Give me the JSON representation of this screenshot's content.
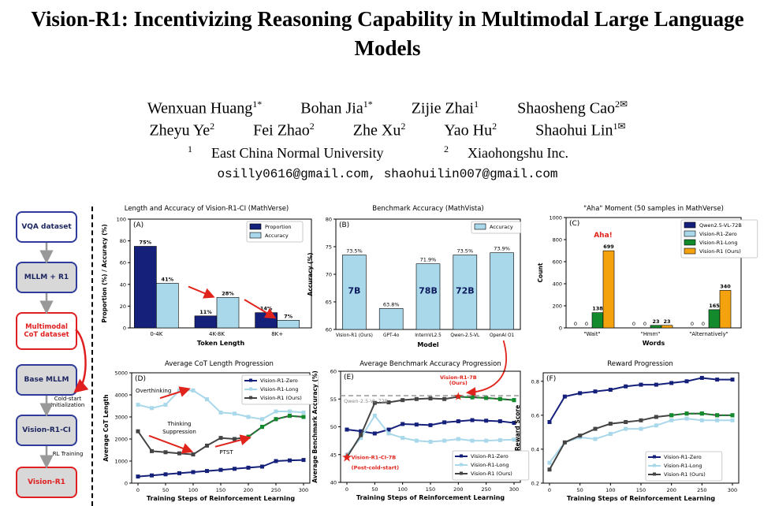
{
  "paper": {
    "title_line1": "Vision-R1: Incentivizing Reasoning Capability in Multimodal Large Language",
    "title_line2": "Models",
    "authors_row1": [
      {
        "name": "Wenxuan Huang",
        "mark": "1*"
      },
      {
        "name": "Bohan Jia",
        "mark": "1*"
      },
      {
        "name": "Zijie Zhai",
        "mark": "1"
      },
      {
        "name": "Shaosheng Cao",
        "mark": "2✉"
      }
    ],
    "authors_row2": [
      {
        "name": "Zheyu Ye",
        "mark": "2"
      },
      {
        "name": "Fei Zhao",
        "mark": "2"
      },
      {
        "name": "Zhe Xu",
        "mark": "2"
      },
      {
        "name": "Yao Hu",
        "mark": "2"
      },
      {
        "name": "Shaohui Lin",
        "mark": "1✉"
      }
    ],
    "affiliations": [
      {
        "mark": "1",
        "name": "East China Normal University"
      },
      {
        "mark": "2",
        "name": "Xiaohongshu Inc."
      }
    ],
    "emails": "osilly0616@gmail.com, shaohuilin007@gmail.com"
  },
  "flow": {
    "boxes": [
      "VQA dataset",
      "MLLM + R1",
      "Multimodal CoT dataset",
      "Base MLLM",
      "Vision-R1-CI",
      "Vision-R1"
    ],
    "labels": [
      "Cold-start Initialization",
      "RL Training"
    ]
  },
  "colors": {
    "navy": "#14207a",
    "light": "#a9d8ea",
    "green": "#138a2b",
    "orange": "#f5a20f",
    "red": "#e0241c",
    "darkgray": "#444444"
  },
  "chart_data": [
    {
      "id": "A",
      "type": "bar",
      "panel_label": "(A)",
      "title": "Length and Accuracy of Vision-R1-CI (MathVerse)",
      "xlabel": "Token Length",
      "ylabel": "Proportion (%) / Accuracy (%)",
      "categories": [
        "0-4K",
        "4K-8K",
        "8K+"
      ],
      "ylim": [
        0,
        100
      ],
      "yticks": [
        0,
        20,
        40,
        60,
        80,
        100
      ],
      "series": [
        {
          "name": "Proportion",
          "values": [
            75,
            11,
            14
          ],
          "labels": [
            "75%",
            "11%",
            "14%"
          ]
        },
        {
          "name": "Accuracy",
          "values": [
            41,
            28,
            7
          ],
          "labels": [
            "41%",
            "28%",
            "7%"
          ]
        }
      ]
    },
    {
      "id": "B",
      "type": "bar",
      "panel_label": "(B)",
      "title": "Benchmark Accuracy (MathVista)",
      "xlabel": "Model",
      "ylabel": "Accuracy (%)",
      "categories": [
        "Vision-R1 (Ours)",
        "GPT-4o",
        "InternVL2.5",
        "Qwen-2.5-VL",
        "OpenAI O1"
      ],
      "ylim": [
        60,
        80
      ],
      "yticks": [
        60,
        65,
        70,
        75,
        80
      ],
      "series": [
        {
          "name": "Accuracy",
          "values": [
            73.5,
            63.8,
            71.9,
            73.5,
            73.9
          ],
          "labels": [
            "73.5%",
            "63.8%",
            "71.9%",
            "73.5%",
            "73.9%"
          ]
        }
      ],
      "bar_text": [
        "7B",
        "",
        "78B",
        "72B",
        ""
      ]
    },
    {
      "id": "C",
      "type": "bar",
      "panel_label": "(C)",
      "title": "\"Aha\" Moment (50 samples in MathVerse)",
      "xlabel": "Words",
      "ylabel": "Count",
      "categories": [
        "\"Wait\"",
        "\"Hmm\"",
        "\"Alternatively\""
      ],
      "ylim": [
        0,
        1000
      ],
      "yticks": [
        0,
        200,
        400,
        600,
        800,
        1000
      ],
      "series": [
        {
          "name": "Qwen2.5-VL-72B",
          "values": [
            0,
            0,
            0
          ]
        },
        {
          "name": "Vision-R1-Zero",
          "values": [
            0,
            0,
            0
          ]
        },
        {
          "name": "Vision-R1-Long",
          "values": [
            138,
            23,
            165
          ]
        },
        {
          "name": "Vision-R1 (Ours)",
          "values": [
            699,
            23,
            340
          ]
        }
      ],
      "annotation": "Aha!"
    },
    {
      "id": "D",
      "type": "line",
      "panel_label": "(D)",
      "title": "Average CoT Length Progression",
      "xlabel": "Training Steps of Reinforcement Learning",
      "ylabel": "Average CoT Length",
      "x": [
        0,
        25,
        50,
        75,
        100,
        125,
        150,
        175,
        200,
        225,
        250,
        275,
        300
      ],
      "xlim": [
        0,
        300
      ],
      "xticks": [
        0,
        50,
        100,
        150,
        200,
        250,
        300
      ],
      "ylim": [
        0,
        5000
      ],
      "yticks": [
        0,
        1000,
        2000,
        3000,
        4000,
        5000
      ],
      "series": [
        {
          "name": "Vision-R1-Zero",
          "values": [
            300,
            350,
            400,
            450,
            500,
            550,
            600,
            650,
            700,
            750,
            1000,
            1030,
            1050
          ]
        },
        {
          "name": "Vision-R1-Long",
          "values": [
            3550,
            3400,
            3550,
            4200,
            4200,
            3800,
            3200,
            3150,
            3000,
            2900,
            3250,
            3250,
            3200
          ]
        },
        {
          "name": "Vision-R1 (Ours)",
          "values": [
            2350,
            1450,
            1400,
            1350,
            1300,
            1700,
            2050,
            2000,
            2100,
            2550,
            2900,
            3050,
            3000
          ]
        }
      ],
      "annotations": [
        "Overthinking",
        "Thinking",
        "Suppression",
        "PTST"
      ]
    },
    {
      "id": "E",
      "type": "line",
      "panel_label": "(E)",
      "title": "Average Benchmark Accuracy Progression",
      "xlabel": "Training Steps of Reinforcement Learning",
      "ylabel": "Average Benchmark Accuracy (%)",
      "x": [
        0,
        25,
        50,
        75,
        100,
        125,
        150,
        175,
        200,
        225,
        250,
        275,
        300
      ],
      "xlim": [
        0,
        300
      ],
      "xticks": [
        0,
        50,
        100,
        150,
        200,
        250,
        300
      ],
      "ylim": [
        40,
        60
      ],
      "yticks": [
        40,
        45,
        50,
        55,
        60
      ],
      "series": [
        {
          "name": "Vision-R1-Zero",
          "values": [
            49.5,
            49.2,
            48.8,
            49.5,
            50.5,
            50.4,
            50.3,
            50.8,
            51.0,
            51.2,
            51.1,
            51.0,
            50.7
          ]
        },
        {
          "name": "Vision-R1-Long",
          "values": [
            45.0,
            48.0,
            52.0,
            48.8,
            48.0,
            47.5,
            47.3,
            47.5,
            47.8,
            47.5,
            47.5,
            47.6,
            47.7
          ]
        },
        {
          "name": "Vision-R1 (Ours)",
          "values": [
            44.5,
            48.5,
            54.3,
            54.4,
            54.8,
            55.0,
            55.1,
            55.0,
            55.4,
            55.3,
            55.2,
            55.0,
            54.8
          ]
        }
      ],
      "reference": {
        "name": "Qwen-2.5-VL-72B",
        "value": 55.6
      },
      "markers": [
        "Vision-R1-7B (Ours)",
        "Vision-R1-CI-7B (Post-cold-start)"
      ]
    },
    {
      "id": "F",
      "type": "line",
      "panel_label": "(F)",
      "title": "Reward Progression",
      "xlabel": "Training Steps of Reinforcement Learning",
      "ylabel": "Reward Score",
      "x": [
        0,
        25,
        50,
        75,
        100,
        125,
        150,
        175,
        200,
        225,
        250,
        275,
        300
      ],
      "xlim": [
        0,
        300
      ],
      "xticks": [
        0,
        50,
        100,
        150,
        200,
        250,
        300
      ],
      "ylim": [
        0.2,
        0.85
      ],
      "yticks": [
        0.2,
        0.4,
        0.6,
        0.8
      ],
      "series": [
        {
          "name": "Vision-R1-Zero",
          "values": [
            0.56,
            0.71,
            0.73,
            0.74,
            0.75,
            0.77,
            0.78,
            0.78,
            0.79,
            0.8,
            0.82,
            0.81,
            0.81
          ]
        },
        {
          "name": "Vision-R1-Long",
          "values": [
            0.32,
            0.44,
            0.47,
            0.46,
            0.49,
            0.52,
            0.52,
            0.54,
            0.57,
            0.58,
            0.57,
            0.57,
            0.57
          ]
        },
        {
          "name": "Vision-R1 (Ours)",
          "values": [
            0.28,
            0.44,
            0.48,
            0.52,
            0.55,
            0.56,
            0.57,
            0.59,
            0.6,
            0.61,
            0.61,
            0.6,
            0.6
          ]
        }
      ]
    }
  ]
}
